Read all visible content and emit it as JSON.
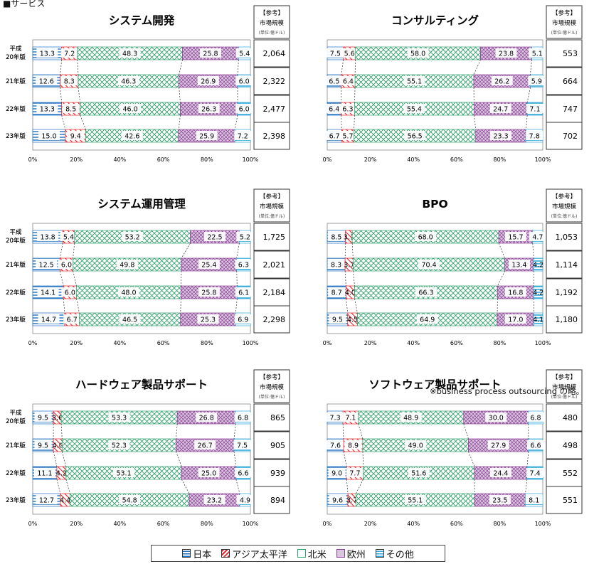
{
  "header": "■サービス",
  "market_box": {
    "ref": "【参考】",
    "label": "市場規模",
    "unit": "(単位:億ドル)"
  },
  "legend": [
    {
      "label": "日本",
      "color": "#1f6fbf"
    },
    {
      "label": "アジア太平洋",
      "color": "#e0262b"
    },
    {
      "label": "北米",
      "color": "#2e9e6a"
    },
    {
      "label": "欧州",
      "color": "#8b3f96"
    },
    {
      "label": "その他",
      "color": "#31a9d8"
    }
  ],
  "bpo_note": "※business process outsourcing の略。",
  "chart_data": [
    {
      "type": "bar",
      "orientation": "horizontal",
      "stacked": true,
      "title": "システム開発",
      "categories": [
        "平成\n20年版",
        "21年版",
        "22年版",
        "23年版"
      ],
      "series": [
        {
          "name": "日本",
          "values": [
            13.3,
            12.6,
            13.3,
            15.0
          ]
        },
        {
          "name": "アジア太平洋",
          "values": [
            7.2,
            8.3,
            8.5,
            9.4
          ]
        },
        {
          "name": "北米",
          "values": [
            48.3,
            46.3,
            46.0,
            42.6
          ]
        },
        {
          "name": "欧州",
          "values": [
            25.8,
            26.9,
            26.3,
            25.9
          ]
        },
        {
          "name": "その他",
          "values": [
            5.4,
            6.0,
            6.0,
            7.2
          ]
        }
      ],
      "market_size": [
        "2,064",
        "2,322",
        "2,477",
        "2,398"
      ],
      "xticks": [
        "0%",
        "20%",
        "40%",
        "60%",
        "80%",
        "100%"
      ],
      "xlim": [
        0,
        100
      ]
    },
    {
      "type": "bar",
      "orientation": "horizontal",
      "stacked": true,
      "title": "コンサルティング",
      "categories": [
        "平成\n20年版",
        "21年版",
        "22年版",
        "23年版"
      ],
      "series": [
        {
          "name": "日本",
          "values": [
            7.5,
            6.5,
            6.4,
            6.7
          ]
        },
        {
          "name": "アジア太平洋",
          "values": [
            5.6,
            6.4,
            6.3,
            5.7
          ]
        },
        {
          "name": "北米",
          "values": [
            58.0,
            55.1,
            55.4,
            56.5
          ]
        },
        {
          "name": "欧州",
          "values": [
            23.8,
            26.2,
            24.7,
            23.3
          ]
        },
        {
          "name": "その他",
          "values": [
            5.1,
            5.9,
            7.1,
            7.8
          ]
        }
      ],
      "market_size": [
        "553",
        "664",
        "747",
        "702"
      ],
      "xticks": [
        "0%",
        "20%",
        "40%",
        "60%",
        "80%",
        "100%"
      ],
      "xlim": [
        0,
        100
      ]
    },
    {
      "type": "bar",
      "orientation": "horizontal",
      "stacked": true,
      "title": "システム運用管理",
      "categories": [
        "平成\n20年版",
        "21年版",
        "22年版",
        "23年版"
      ],
      "series": [
        {
          "name": "日本",
          "values": [
            13.8,
            12.5,
            14.1,
            14.7
          ]
        },
        {
          "name": "アジア太平洋",
          "values": [
            5.4,
            6.0,
            6.0,
            6.7
          ]
        },
        {
          "name": "北米",
          "values": [
            53.2,
            49.8,
            48.0,
            46.5
          ]
        },
        {
          "name": "欧州",
          "values": [
            22.5,
            25.4,
            25.8,
            25.3
          ]
        },
        {
          "name": "その他",
          "values": [
            5.2,
            6.3,
            6.1,
            6.9
          ]
        }
      ],
      "market_size": [
        "1,725",
        "2,021",
        "2,184",
        "2,298"
      ],
      "xticks": [
        "0%",
        "20%",
        "40%",
        "60%",
        "80%",
        "100%"
      ],
      "xlim": [
        0,
        100
      ]
    },
    {
      "type": "bar",
      "orientation": "horizontal",
      "stacked": true,
      "title": "BPO",
      "categories": [
        "平成\n20年版",
        "21年版",
        "22年版",
        "23年版"
      ],
      "series": [
        {
          "name": "日本",
          "values": [
            8.5,
            8.3,
            8.7,
            9.5
          ]
        },
        {
          "name": "アジア太平洋",
          "values": [
            3.1,
            3.7,
            4.0,
            4.5
          ]
        },
        {
          "name": "北米",
          "values": [
            68.0,
            70.4,
            66.3,
            64.9
          ]
        },
        {
          "name": "欧州",
          "values": [
            15.7,
            13.4,
            16.8,
            17.0
          ]
        },
        {
          "name": "その他",
          "values": [
            4.7,
            4.2,
            4.2,
            4.1
          ]
        }
      ],
      "market_size": [
        "1,053",
        "1,114",
        "1,192",
        "1,180"
      ],
      "xticks": [
        "0%",
        "20%",
        "40%",
        "60%",
        "80%",
        "100%"
      ],
      "xlim": [
        0,
        100
      ]
    },
    {
      "type": "bar",
      "orientation": "horizontal",
      "stacked": true,
      "title": "ハードウェア製品サポート",
      "categories": [
        "平成\n20年版",
        "21年版",
        "22年版",
        "23年版"
      ],
      "series": [
        {
          "name": "日本",
          "values": [
            9.5,
            9.5,
            11.1,
            12.7
          ]
        },
        {
          "name": "アジア太平洋",
          "values": [
            3.6,
            4.0,
            4.2,
            4.4
          ]
        },
        {
          "name": "北米",
          "values": [
            53.3,
            52.3,
            53.1,
            54.8
          ]
        },
        {
          "name": "欧州",
          "values": [
            26.8,
            26.7,
            25.0,
            23.2
          ]
        },
        {
          "name": "その他",
          "values": [
            6.8,
            7.5,
            6.6,
            4.9
          ]
        }
      ],
      "market_size": [
        "865",
        "905",
        "939",
        "894"
      ],
      "xticks": [
        "0%",
        "20%",
        "40%",
        "60%",
        "80%",
        "100%"
      ],
      "xlim": [
        0,
        100
      ]
    },
    {
      "type": "bar",
      "orientation": "horizontal",
      "stacked": true,
      "title": "ソフトウェア製品サポート",
      "categories": [
        "平成\n20年版",
        "21年版",
        "22年版",
        "23年版"
      ],
      "series": [
        {
          "name": "日本",
          "values": [
            7.3,
            7.6,
            9.0,
            9.6
          ]
        },
        {
          "name": "アジア太平洋",
          "values": [
            7.1,
            8.9,
            7.7,
            3.7
          ]
        },
        {
          "name": "北米",
          "values": [
            48.9,
            49.0,
            51.6,
            55.1
          ]
        },
        {
          "name": "欧州",
          "values": [
            30.0,
            27.9,
            24.4,
            23.5
          ]
        },
        {
          "name": "その他",
          "values": [
            6.8,
            6.6,
            7.4,
            8.1
          ]
        }
      ],
      "market_size": [
        "480",
        "498",
        "552",
        "551"
      ],
      "xticks": [
        "0%",
        "20%",
        "40%",
        "60%",
        "80%",
        "100%"
      ],
      "xlim": [
        0,
        100
      ]
    }
  ]
}
